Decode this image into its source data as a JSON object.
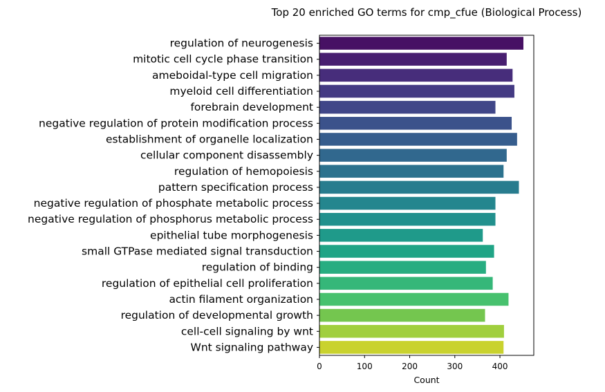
{
  "chart_data": {
    "type": "bar",
    "orientation": "horizontal",
    "title": "Top 20 enriched GO terms for cmp_cfue (Biological Process)",
    "xlabel": "Count",
    "ylabel": "",
    "xlim": [
      0,
      475
    ],
    "xticks": [
      0,
      100,
      200,
      300,
      400
    ],
    "xtick_labels": [
      "0",
      "100",
      "200",
      "300",
      "400"
    ],
    "grid": false,
    "legend": "none",
    "categories": [
      "regulation of neurogenesis",
      "mitotic cell cycle phase transition",
      "ameboidal-type cell migration",
      "myeloid cell differentiation",
      "forebrain development",
      "negative regulation of protein modification process",
      "establishment of organelle localization",
      "cellular component disassembly",
      "regulation of hemopoiesis",
      "pattern specification process",
      "negative regulation of phosphate metabolic process",
      "negative regulation of phosphorus metabolic process",
      "epithelial tube morphogenesis",
      "small GTPase mediated signal transduction",
      "regulation of binding",
      "regulation of epithelial cell proliferation",
      "actin filament organization",
      "regulation of developmental growth",
      "cell-cell signaling by wnt",
      "Wnt signaling pathway"
    ],
    "values": [
      452,
      415,
      428,
      432,
      390,
      426,
      438,
      415,
      408,
      442,
      390,
      390,
      362,
      387,
      369,
      384,
      419,
      367,
      409,
      408
    ],
    "colors": [
      "#471164",
      "#481f70",
      "#472d7b",
      "#443a83",
      "#404688",
      "#3b528b",
      "#365d8d",
      "#31688e",
      "#2c728e",
      "#287c8e",
      "#24868e",
      "#21908d",
      "#1f9a8a",
      "#20a486",
      "#27ad81",
      "#35b779",
      "#47c16e",
      "#5dc863",
      "#75d054",
      "#8fd744"
    ],
    "palette_note": "viridis",
    "bar_color_sequence": [
      "#471164",
      "#481f70",
      "#472d7b",
      "#443a83",
      "#404688",
      "#3b528b",
      "#365d8d",
      "#31688e",
      "#2c728e",
      "#287c8e",
      "#24868e",
      "#21908d",
      "#1f9a8a",
      "#20a486",
      "#27ad81",
      "#35b779",
      "#47c16e",
      "#74c64f",
      "#a0cf3e",
      "#c9d22e"
    ]
  }
}
